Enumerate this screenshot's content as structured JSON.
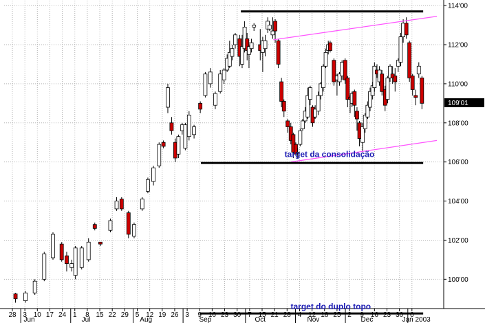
{
  "chart_data": {
    "type": "candlestick",
    "title": "",
    "ylim": [
      98.5,
      114.25
    ],
    "y_ticks": [
      {
        "value": 100,
        "label": "100'00"
      },
      {
        "value": 102,
        "label": "102'00"
      },
      {
        "value": 104,
        "label": "104'00"
      },
      {
        "value": 106,
        "label": "106'00"
      },
      {
        "value": 108,
        "label": "108'00"
      },
      {
        "value": 110,
        "label": "110'00"
      },
      {
        "value": 112,
        "label": "112'00"
      },
      {
        "value": 114,
        "label": "114'00"
      }
    ],
    "x_ticks": [
      "28",
      "3",
      "10",
      "17",
      "24",
      "1",
      "8",
      "15",
      "22",
      "29",
      "5",
      "12",
      "19",
      "26",
      "3",
      "9",
      "16",
      "23",
      "30",
      "7",
      "15",
      "21",
      "28",
      "4",
      "12",
      "18",
      "25",
      "2",
      "9",
      "16",
      "23",
      "30",
      "6"
    ],
    "months": [
      "Jun",
      "Jul",
      "Aug",
      "Sep",
      "Oct",
      "Nov",
      "Dec",
      "Jan 2003"
    ],
    "last_price": {
      "value": 109.03,
      "label": "109'01"
    },
    "colors": {
      "up": "#ffffff",
      "down": "#cc0000",
      "channel": "#ff55ff",
      "level": "#000000",
      "annotation": "#1c1cb4",
      "grid": "#b4b4b4",
      "last_bg": "#000000"
    },
    "annotations": [
      {
        "text": "target da consolidação",
        "price": 106.4
      },
      {
        "text": "target do duplo topo",
        "price": 98.6
      }
    ],
    "levels": [
      {
        "name": "double-top-resistance",
        "price": 113.7,
        "from_week": 18.3,
        "to_week": 32.9
      },
      {
        "name": "consolidation-target-line",
        "price": 105.95,
        "from_week": 15.1,
        "to_week": 32.9
      },
      {
        "name": "double-top-target-line",
        "price": 98.25,
        "from_week": 15.0,
        "to_week": 32.9
      }
    ],
    "channel": [
      {
        "name": "upper-channel",
        "from": [
          20.9,
          112.25
        ],
        "to": [
          34.0,
          113.45
        ]
      },
      {
        "name": "lower-channel",
        "from": [
          22.3,
          106.0
        ],
        "to": [
          34.0,
          107.1
        ]
      }
    ],
    "candles": [
      [
        0.25,
        99.25,
        99.0,
        99.3,
        98.8
      ],
      [
        1.05,
        98.9,
        99.3,
        99.4,
        98.8
      ],
      [
        1.8,
        99.3,
        99.9,
        100.0,
        99.2
      ],
      [
        2.55,
        100.0,
        101.3,
        101.4,
        99.9
      ],
      [
        3.25,
        101.1,
        102.3,
        102.4,
        101.0
      ],
      [
        3.95,
        101.8,
        101.0,
        101.9,
        100.9
      ],
      [
        4.35,
        101.2,
        100.8,
        101.4,
        100.4
      ],
      [
        4.75,
        100.6,
        100.8,
        101.0,
        100.4
      ],
      [
        5.05,
        100.2,
        101.6,
        101.7,
        100.0
      ],
      [
        5.55,
        100.6,
        101.6,
        101.7,
        100.5
      ],
      [
        6.1,
        101.0,
        101.9,
        102.1,
        100.9
      ],
      [
        6.6,
        102.8,
        102.6,
        102.9,
        102.5
      ],
      [
        7.05,
        101.9,
        101.8,
        101.9,
        101.7
      ],
      [
        7.85,
        102.5,
        103.0,
        103.1,
        102.4
      ],
      [
        8.35,
        103.6,
        104.0,
        104.2,
        103.5
      ],
      [
        8.75,
        104.1,
        103.6,
        104.2,
        103.5
      ],
      [
        9.3,
        103.4,
        102.3,
        103.5,
        102.1
      ],
      [
        9.75,
        102.2,
        102.8,
        102.9,
        102.1
      ],
      [
        10.4,
        103.6,
        104.1,
        104.2,
        103.5
      ],
      [
        10.85,
        104.5,
        105.1,
        105.2,
        104.4
      ],
      [
        11.3,
        105.0,
        105.7,
        105.8,
        104.8
      ],
      [
        11.75,
        105.8,
        106.9,
        107.0,
        105.7
      ],
      [
        12.1,
        107.0,
        106.8,
        107.1,
        106.7
      ],
      [
        12.45,
        108.8,
        109.8,
        110.0,
        108.5
      ],
      [
        12.75,
        108.0,
        107.6,
        108.3,
        107.4
      ],
      [
        13.05,
        107.0,
        106.2,
        107.2,
        106.0
      ],
      [
        13.3,
        106.4,
        107.3,
        107.4,
        106.2
      ],
      [
        13.6,
        107.6,
        107.9,
        108.0,
        107.4
      ],
      [
        13.85,
        106.7,
        107.9,
        108.0,
        106.6
      ],
      [
        14.15,
        107.3,
        108.4,
        108.6,
        107.1
      ],
      [
        14.55,
        107.4,
        107.8,
        107.9,
        107.2
      ],
      [
        15.05,
        109.0,
        108.7,
        109.1,
        108.5
      ],
      [
        15.45,
        109.4,
        110.5,
        110.6,
        109.3
      ],
      [
        15.85,
        110.0,
        110.6,
        110.8,
        109.8
      ],
      [
        16.25,
        108.9,
        109.5,
        109.6,
        108.7
      ],
      [
        16.65,
        109.6,
        110.5,
        110.7,
        109.5
      ],
      [
        16.95,
        110.2,
        110.7,
        110.8,
        110.0
      ],
      [
        17.2,
        110.7,
        111.3,
        111.5,
        110.6
      ],
      [
        17.4,
        110.9,
        111.6,
        112.2,
        110.8
      ],
      [
        17.6,
        111.4,
        111.8,
        112.0,
        111.2
      ],
      [
        17.85,
        112.0,
        112.5,
        112.6,
        111.8
      ],
      [
        18.2,
        112.3,
        111.4,
        112.5,
        110.9
      ],
      [
        18.4,
        111.0,
        111.9,
        112.5,
        110.8
      ],
      [
        18.6,
        111.8,
        112.9,
        113.2,
        111.6
      ],
      [
        18.8,
        112.3,
        111.7,
        112.6,
        111.2
      ],
      [
        18.95,
        111.5,
        111.9,
        112.0,
        110.8
      ],
      [
        19.15,
        111.8,
        112.1,
        112.3,
        111.6
      ],
      [
        19.35,
        112.9,
        113.0,
        113.1,
        112.7
      ],
      [
        19.85,
        112.0,
        111.7,
        112.8,
        111.2
      ],
      [
        20.05,
        111.6,
        112.2,
        112.4,
        110.6
      ],
      [
        20.25,
        111.8,
        112.2,
        112.5,
        111.4
      ],
      [
        20.45,
        112.8,
        113.2,
        113.4,
        112.6
      ],
      [
        20.6,
        112.8,
        113.0,
        113.2,
        112.7
      ],
      [
        20.85,
        112.5,
        112.7,
        113.4,
        112.3
      ],
      [
        21.05,
        113.2,
        112.7,
        113.3,
        112.1
      ],
      [
        21.3,
        112.2,
        111.0,
        112.3,
        110.8
      ],
      [
        21.55,
        110.1,
        109.1,
        110.3,
        108.8
      ],
      [
        21.75,
        109.1,
        108.6,
        109.2,
        108.3
      ],
      [
        22.05,
        108.1,
        107.8,
        108.2,
        107.5
      ],
      [
        22.3,
        107.8,
        107.1,
        108.0,
        106.9
      ],
      [
        22.5,
        107.4,
        106.5,
        107.5,
        106.2
      ],
      [
        22.7,
        106.9,
        106.4,
        107.0,
        106.3
      ],
      [
        22.85,
        106.5,
        106.5,
        106.7,
        106.2
      ],
      [
        23.05,
        106.9,
        107.6,
        107.7,
        106.8
      ],
      [
        23.25,
        107.7,
        108.1,
        108.2,
        107.6
      ],
      [
        23.45,
        108.1,
        108.6,
        108.8,
        108.0
      ],
      [
        23.65,
        108.3,
        109.4,
        109.8,
        108.2
      ],
      [
        23.85,
        109.2,
        109.8,
        109.9,
        108.9
      ],
      [
        24.05,
        108.8,
        108.0,
        108.9,
        107.8
      ],
      [
        24.25,
        108.3,
        108.7,
        108.9,
        108.2
      ],
      [
        24.5,
        108.6,
        109.4,
        109.6,
        108.4
      ],
      [
        24.7,
        109.4,
        110.0,
        110.1,
        109.2
      ],
      [
        24.9,
        109.8,
        110.9,
        111.0,
        109.6
      ],
      [
        25.1,
        110.9,
        111.6,
        111.8,
        110.8
      ],
      [
        25.3,
        111.7,
        112.0,
        112.2,
        111.5
      ],
      [
        25.45,
        112.1,
        111.7,
        112.2,
        111.6
      ],
      [
        25.75,
        111.2,
        110.1,
        111.3,
        109.9
      ],
      [
        26.0,
        110.2,
        110.4,
        110.5,
        109.4
      ],
      [
        26.2,
        110.1,
        110.5,
        110.6,
        109.9
      ],
      [
        26.4,
        110.4,
        111.1,
        111.2,
        110.2
      ],
      [
        26.65,
        111.2,
        110.2,
        111.3,
        110.0
      ],
      [
        26.85,
        110.3,
        109.2,
        110.4,
        108.8
      ],
      [
        27.05,
        109.3,
        109.2,
        109.4,
        108.5
      ],
      [
        27.2,
        109.0,
        109.5,
        109.6,
        108.8
      ],
      [
        27.4,
        109.6,
        108.9,
        109.7,
        108.3
      ],
      [
        27.6,
        108.6,
        108.2,
        108.8,
        107.6
      ],
      [
        27.8,
        108.0,
        107.2,
        108.1,
        106.8
      ],
      [
        28.05,
        107.0,
        107.8,
        108.0,
        106.5
      ],
      [
        28.25,
        107.7,
        108.4,
        108.5,
        107.5
      ],
      [
        28.45,
        108.3,
        108.9,
        109.1,
        108.2
      ],
      [
        28.65,
        108.8,
        109.6,
        109.8,
        108.6
      ],
      [
        28.85,
        109.4,
        109.9,
        110.1,
        109.2
      ],
      [
        29.0,
        109.8,
        110.9,
        111.1,
        109.6
      ],
      [
        29.2,
        110.7,
        110.5,
        111.0,
        110.3
      ],
      [
        29.4,
        110.1,
        110.7,
        110.9,
        109.9
      ],
      [
        29.6,
        110.5,
        109.6,
        110.7,
        109.4
      ],
      [
        29.85,
        109.7,
        108.9,
        109.9,
        108.6
      ],
      [
        30.05,
        109.2,
        110.3,
        110.4,
        109.0
      ],
      [
        30.25,
        110.3,
        110.9,
        111.0,
        110.1
      ],
      [
        30.45,
        110.5,
        110.3,
        110.9,
        110.0
      ],
      [
        30.65,
        110.4,
        110.1,
        110.8,
        109.6
      ],
      [
        30.9,
        110.9,
        111.2,
        111.3,
        110.6
      ],
      [
        31.1,
        111.1,
        112.4,
        112.6,
        110.9
      ],
      [
        31.3,
        112.4,
        113.1,
        113.3,
        112.1
      ],
      [
        31.55,
        113.1,
        112.5,
        113.4,
        112.3
      ],
      [
        31.8,
        112.1,
        110.3,
        112.2,
        110.1
      ],
      [
        32.05,
        110.4,
        109.7,
        110.5,
        109.4
      ],
      [
        32.3,
        109.4,
        109.3,
        109.7,
        108.9
      ],
      [
        32.55,
        110.5,
        110.9,
        111.1,
        110.3
      ],
      [
        32.8,
        110.3,
        109.0,
        110.4,
        108.7
      ]
    ]
  }
}
